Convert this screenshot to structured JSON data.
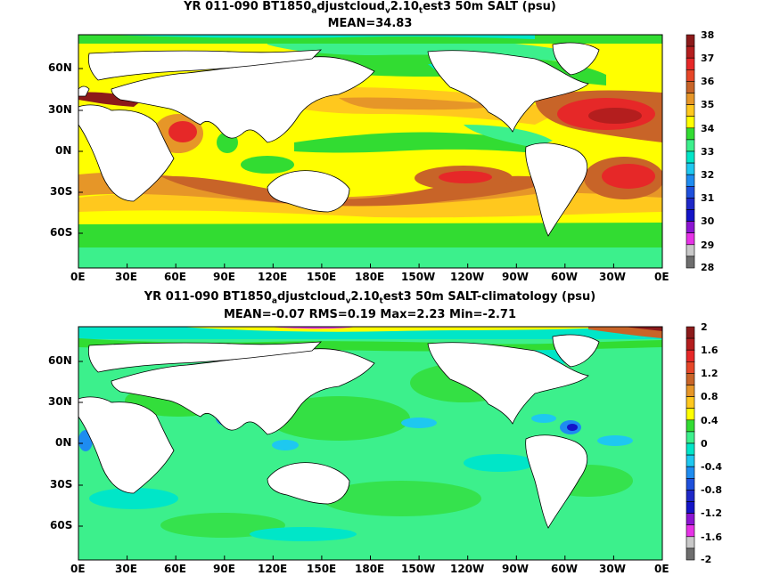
{
  "panels": [
    {
      "title_parts": [
        "YR 011-090 BT1850",
        "a",
        "djustcloud",
        "v",
        "2.10",
        "t",
        "est3 50m SALT (psu)"
      ],
      "stats": "MEAN=34.83",
      "lat_labels": [
        "60N",
        "30N",
        "0N",
        "30S",
        "60S"
      ],
      "lon_labels": [
        "0E",
        "30E",
        "60E",
        "90E",
        "120E",
        "150E",
        "180E",
        "150W",
        "120W",
        "90W",
        "60W",
        "30W",
        "0E"
      ],
      "colorbar": {
        "labels": [
          "38",
          "37",
          "36",
          "35",
          "34",
          "33",
          "32",
          "31",
          "30",
          "29",
          "28"
        ],
        "colors": [
          "#c8c8c8",
          "#6e6e6e",
          "#8c1a1a",
          "#d21e1e",
          "#f03c28",
          "#c86428",
          "#e69628",
          "#ffc81e",
          "#ffff00",
          "#32dc32",
          "#3cf08c",
          "#00e6c8",
          "#1ec8f0",
          "#1e8cf0",
          "#1e50dc",
          "#1414c8",
          "#8c14d2",
          "#e632e6",
          "#ffffff",
          "#c8c8c8",
          "#6e6e6e"
        ]
      }
    },
    {
      "title_parts": [
        "YR 011-090 BT1850",
        "a",
        "djustcloud",
        "v",
        "2.10",
        "t",
        "est3 50m SALT-climatology (psu)"
      ],
      "stats": "MEAN=-0.07   RMS=0.19   Max=2.23   Min=-2.71",
      "lat_labels": [
        "60N",
        "30N",
        "0N",
        "30S",
        "60S"
      ],
      "lon_labels": [
        "0E",
        "30E",
        "60E",
        "90E",
        "120E",
        "150E",
        "180E",
        "150W",
        "120W",
        "90W",
        "60W",
        "30W",
        "0E"
      ],
      "colorbar": {
        "labels": [
          "2",
          "1.6",
          "1.2",
          "0.8",
          "0.4",
          "0",
          "-0.4",
          "-0.8",
          "-1.2",
          "-1.6",
          "-2"
        ]
      }
    }
  ],
  "palette": {
    "high": [
      "#8c1a1a",
      "#b41e1e",
      "#e62828",
      "#c86428",
      "#e69628",
      "#ffc81e",
      "#ffff00",
      "#32dc32",
      "#3cf08c",
      "#00e6c8",
      "#1ec8f0",
      "#1e8cf0",
      "#1e50dc",
      "#1414c8",
      "#8c14d2",
      "#e632e6",
      "#c8c8c8",
      "#6e6e6e"
    ]
  }
}
